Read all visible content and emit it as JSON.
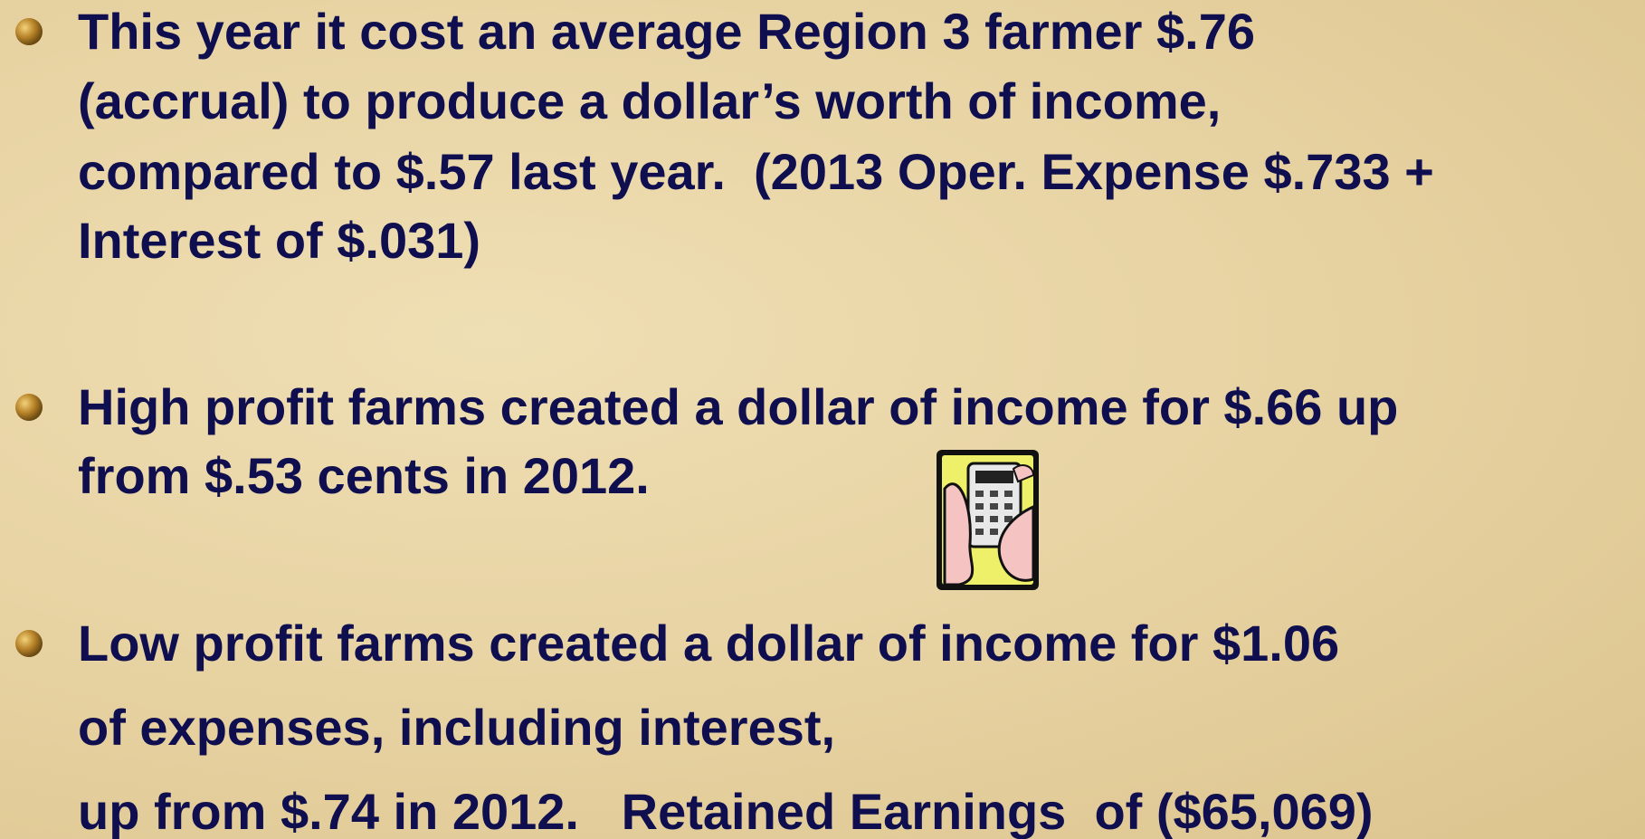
{
  "bullets": [
    {
      "lines": [
        "This year it cost an average Region 3 farmer $.76",
        "(accrual) to produce a dollar’s worth of income,",
        "compared to $.57 last year.  (2013 Oper. Expense $.733 +",
        "Interest of $.031)"
      ]
    },
    {
      "lines": [
        "High profit farms created a dollar of income for $.66 up",
        "from $.53 cents in 2012."
      ]
    },
    {
      "lines": [
        "Low profit farms created a dollar of income for $1.06",
        "of expenses, including interest,",
        "up from $.74 in 2012.   Retained Earnings  of ($65,069)"
      ]
    }
  ]
}
